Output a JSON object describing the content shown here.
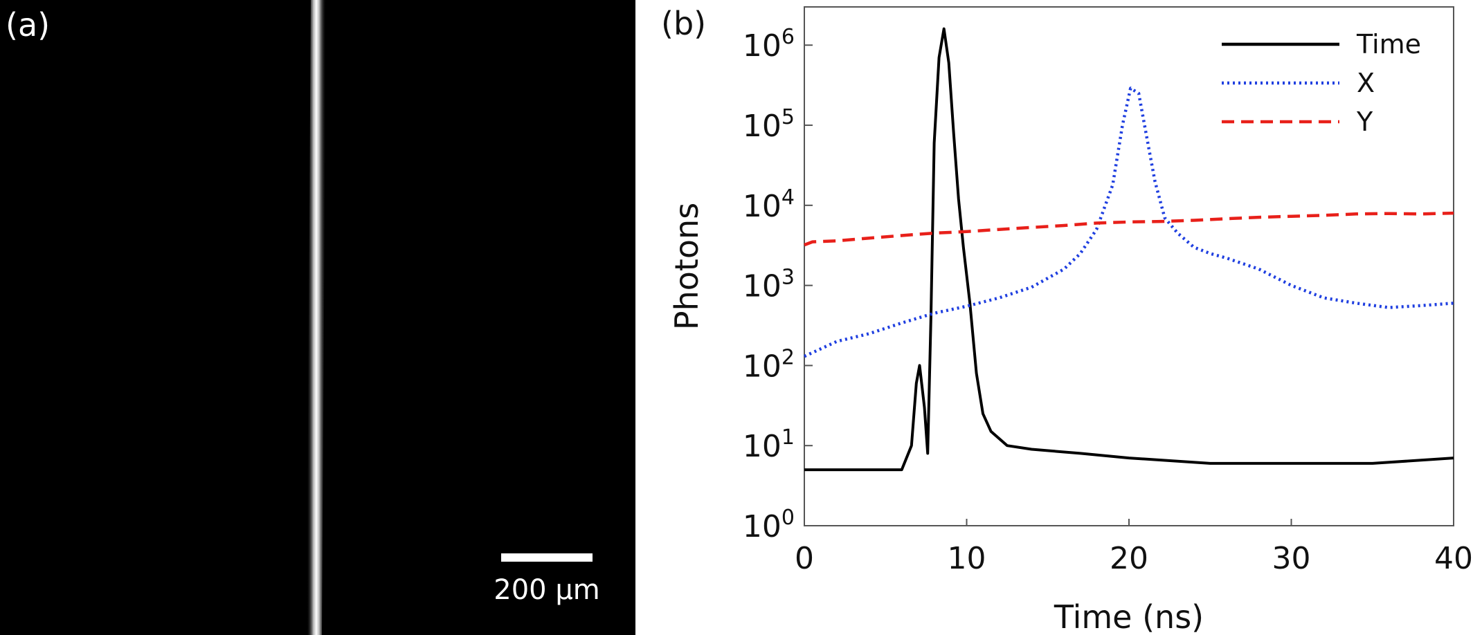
{
  "panel_a": {
    "label": "(a)",
    "scale_bar_label": "200 µm"
  },
  "panel_b": {
    "label": "(b)"
  },
  "chart_data": {
    "type": "line",
    "xlabel": "Time (ns)",
    "ylabel": "Photons",
    "xlim": [
      0,
      40
    ],
    "ylim": [
      1,
      3000000
    ],
    "yscale": "log",
    "x_ticks": [
      0,
      10,
      20,
      30,
      40
    ],
    "y_ticks": [
      {
        "value": 1,
        "base": "10",
        "exp": "0"
      },
      {
        "value": 10,
        "base": "10",
        "exp": "1"
      },
      {
        "value": 100,
        "base": "10",
        "exp": "2"
      },
      {
        "value": 1000,
        "base": "10",
        "exp": "3"
      },
      {
        "value": 10000,
        "base": "10",
        "exp": "4"
      },
      {
        "value": 100000,
        "base": "10",
        "exp": "5"
      },
      {
        "value": 1000000,
        "base": "10",
        "exp": "6"
      }
    ],
    "grid": false,
    "legend_position": "top-right",
    "series": [
      {
        "name": "Time",
        "color": "#000000",
        "style": "solid",
        "x": [
          0,
          2,
          4,
          6,
          6.6,
          6.9,
          7.1,
          7.4,
          7.6,
          7.8,
          8.0,
          8.3,
          8.6,
          8.9,
          9.2,
          9.5,
          9.8,
          10.2,
          10.6,
          11.0,
          11.5,
          12.5,
          14,
          17,
          20,
          25,
          30,
          35,
          40
        ],
        "y": [
          5,
          5,
          5,
          5,
          10,
          60,
          100,
          30,
          8,
          400,
          60000,
          700000,
          1600000,
          600000,
          80000,
          12000,
          3000,
          600,
          80,
          25,
          15,
          10,
          9,
          8,
          7,
          6,
          6,
          6,
          7
        ]
      },
      {
        "name": "X",
        "color": "#1f3fe0",
        "style": "dotted",
        "x": [
          0,
          2,
          4,
          6,
          8,
          10,
          12,
          14,
          16,
          17,
          18,
          19,
          19.6,
          20.1,
          20.6,
          21.1,
          21.6,
          22.2,
          23,
          24,
          25,
          26,
          28,
          30,
          32,
          34,
          36,
          38,
          40
        ],
        "y": [
          130,
          200,
          250,
          340,
          450,
          550,
          700,
          950,
          1600,
          2500,
          5000,
          18000,
          100000,
          290000,
          250000,
          70000,
          20000,
          7000,
          4500,
          3000,
          2500,
          2200,
          1600,
          1000,
          700,
          600,
          530,
          560,
          600
        ]
      },
      {
        "name": "Y",
        "color": "#e8201a",
        "style": "dashed",
        "x": [
          0,
          0.5,
          2,
          4,
          6,
          8,
          10,
          12,
          14,
          16,
          18,
          20,
          22,
          24,
          26,
          28,
          30,
          32,
          34,
          36,
          38,
          40
        ],
        "y": [
          3200,
          3500,
          3600,
          3900,
          4200,
          4500,
          4700,
          5000,
          5300,
          5600,
          6000,
          6200,
          6300,
          6500,
          6800,
          7100,
          7300,
          7500,
          7800,
          7900,
          7800,
          8000
        ]
      }
    ]
  }
}
